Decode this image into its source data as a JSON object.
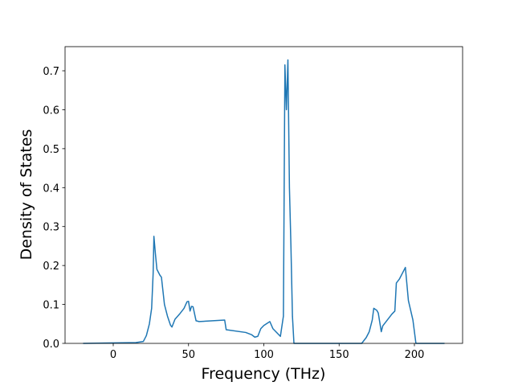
{
  "chart_data": {
    "type": "line",
    "xlabel": "Frequency (THz)",
    "ylabel": "Density of States",
    "color": "#1f77b4",
    "x": [
      -20,
      15,
      20,
      22,
      24,
      25.5,
      26.5,
      27,
      28,
      29,
      31,
      32,
      34,
      36,
      38,
      39,
      41,
      44,
      47,
      49,
      50,
      51,
      52,
      53,
      55,
      57,
      74,
      75,
      88,
      92,
      94,
      96,
      98,
      100,
      104,
      106,
      111,
      113,
      114,
      115,
      116,
      117,
      118,
      119,
      120,
      165,
      168,
      170,
      172,
      173,
      175,
      176,
      178,
      179,
      185,
      187,
      188,
      190,
      194,
      196,
      199,
      201,
      220
    ],
    "values": [
      0,
      0.002,
      0.005,
      0.02,
      0.05,
      0.09,
      0.18,
      0.275,
      0.23,
      0.19,
      0.175,
      0.17,
      0.1,
      0.07,
      0.047,
      0.042,
      0.062,
      0.075,
      0.09,
      0.107,
      0.108,
      0.083,
      0.095,
      0.094,
      0.058,
      0.056,
      0.06,
      0.035,
      0.028,
      0.022,
      0.016,
      0.018,
      0.038,
      0.046,
      0.056,
      0.038,
      0.018,
      0.07,
      0.715,
      0.6,
      0.728,
      0.4,
      0.25,
      0.07,
      0,
      0,
      0.015,
      0.03,
      0.06,
      0.09,
      0.085,
      0.078,
      0.03,
      0.045,
      0.075,
      0.083,
      0.155,
      0.165,
      0.195,
      0.11,
      0.06,
      0,
      0
    ],
    "xlim": [
      -32,
      232
    ],
    "xticks": [
      0,
      50,
      100,
      150,
      200
    ],
    "ylim": [
      0,
      0.762
    ],
    "yticks": [
      {
        "value": 0,
        "label": "0.0"
      },
      0.1,
      0.2,
      0.3,
      0.4,
      0.5,
      0.6,
      0.7
    ]
  }
}
